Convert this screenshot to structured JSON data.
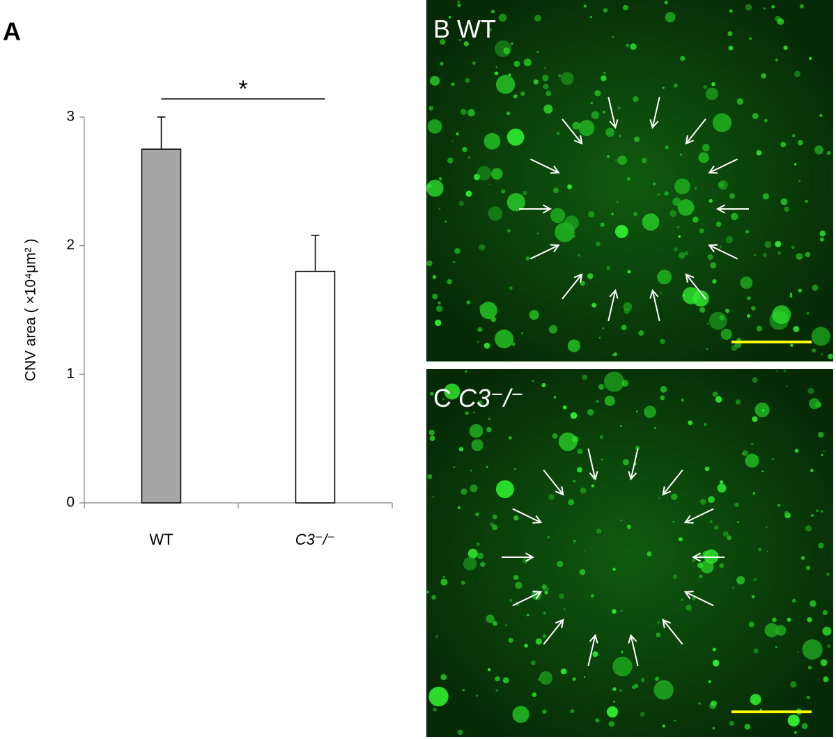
{
  "chart_data": {
    "type": "bar",
    "panel_label": "A",
    "ylabel": "CNV area ( ×10⁴μm² )",
    "categories": [
      "WT",
      "C3⁻/⁻"
    ],
    "values": [
      2.75,
      1.8
    ],
    "errors": [
      0.25,
      0.28
    ],
    "colors": [
      "#a6a6a6",
      "#ffffff"
    ],
    "ylim": [
      0,
      3
    ],
    "yticks": [
      0,
      1,
      2,
      3
    ],
    "significance": "*"
  },
  "panels": [
    {
      "label": "B",
      "title": "WT"
    },
    {
      "label": "C",
      "title": "C3⁻/⁻"
    }
  ]
}
